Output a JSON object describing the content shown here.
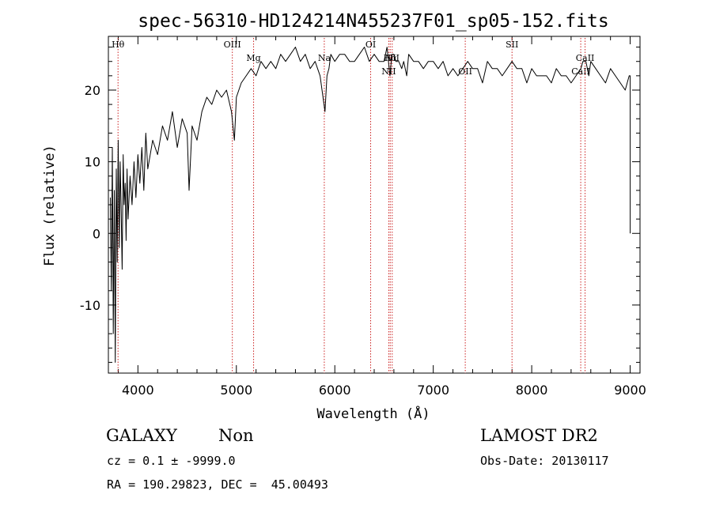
{
  "chart_data": {
    "type": "line",
    "title": "spec-56310-HD124214N455237F01_sp05-152.fits",
    "xlabel": "Wavelength (Å)",
    "ylabel": "Flux (relative)",
    "xlim": [
      3700,
      9100
    ],
    "ylim": [
      -19.5,
      27.5
    ],
    "x_ticks": [
      4000,
      5000,
      6000,
      7000,
      8000,
      9000
    ],
    "y_ticks": [
      -10,
      0,
      10,
      20
    ],
    "grid": false,
    "series": [
      {
        "color": "#000000",
        "x": [
          3720,
          3730,
          3740,
          3750,
          3760,
          3770,
          3780,
          3790,
          3800,
          3810,
          3820,
          3830,
          3840,
          3850,
          3860,
          3870,
          3880,
          3890,
          3900,
          3920,
          3940,
          3960,
          3980,
          4000,
          4020,
          4040,
          4060,
          4080,
          4100,
          4150,
          4200,
          4250,
          4300,
          4350,
          4400,
          4450,
          4500,
          4520,
          4550,
          4600,
          4650,
          4700,
          4750,
          4800,
          4850,
          4900,
          4950,
          4980,
          5000,
          5050,
          5100,
          5150,
          5200,
          5250,
          5300,
          5350,
          5400,
          5450,
          5500,
          5550,
          5600,
          5650,
          5700,
          5750,
          5800,
          5850,
          5880,
          5900,
          5920,
          5940,
          5960,
          6000,
          6050,
          6100,
          6150,
          6200,
          6250,
          6300,
          6350,
          6400,
          6450,
          6500,
          6530,
          6560,
          6580,
          6600,
          6620,
          6650,
          6680,
          6700,
          6730,
          6750,
          6800,
          6850,
          6900,
          6950,
          7000,
          7050,
          7100,
          7150,
          7200,
          7250,
          7300,
          7350,
          7400,
          7450,
          7500,
          7550,
          7600,
          7650,
          7700,
          7750,
          7800,
          7850,
          7900,
          7950,
          8000,
          8050,
          8100,
          8150,
          8200,
          8250,
          8300,
          8350,
          8400,
          8450,
          8500,
          8520,
          8550,
          8580,
          8600,
          8650,
          8700,
          8750,
          8800,
          8850,
          8900,
          8950,
          8990,
          9000,
          9000
        ],
        "y": [
          5,
          -8,
          12,
          -14,
          6,
          -18,
          9,
          -4,
          13,
          -2,
          10,
          3,
          -5,
          11,
          4,
          7,
          -1,
          9,
          2,
          8,
          4,
          10,
          5,
          11,
          7,
          12,
          6,
          14,
          9,
          13,
          11,
          15,
          13,
          17,
          12,
          16,
          14,
          6,
          15,
          13,
          17,
          19,
          18,
          20,
          19,
          20,
          17,
          13,
          19,
          21,
          22,
          23,
          22,
          24,
          23,
          24,
          23,
          25,
          24,
          25,
          26,
          24,
          25,
          23,
          24,
          22,
          19,
          17,
          22,
          23,
          25,
          24,
          25,
          25,
          24,
          24,
          25,
          26,
          24,
          25,
          24,
          24,
          26,
          22,
          25,
          25,
          24,
          24,
          23,
          24,
          22,
          25,
          24,
          24,
          23,
          24,
          24,
          23,
          24,
          22,
          23,
          22,
          23,
          24,
          23,
          23,
          21,
          24,
          23,
          23,
          22,
          23,
          24,
          23,
          23,
          21,
          23,
          22,
          22,
          22,
          21,
          23,
          22,
          22,
          21,
          22,
          23,
          24,
          24,
          22,
          24,
          23,
          22,
          21,
          23,
          22,
          21,
          20,
          22,
          22,
          0
        ]
      }
    ],
    "lines": [
      {
        "label": "Hθ",
        "x": 3798,
        "label_pos": "top"
      },
      {
        "label": "OIII",
        "x": 4959,
        "label_pos": "top"
      },
      {
        "label": "Mg",
        "x": 5175,
        "label_pos": "middle"
      },
      {
        "label": "Na",
        "x": 5893,
        "label_pos": "middle"
      },
      {
        "label": "OI",
        "x": 6364,
        "label_pos": "top"
      },
      {
        "label": "NII",
        "x": 6548,
        "label_pos": "low"
      },
      {
        "label": "Hα",
        "x": 6563,
        "label_pos": "middle"
      },
      {
        "label": "NII",
        "x": 6583,
        "label_pos": "middle"
      },
      {
        "label": "OII",
        "x": 7325,
        "label_pos": "low"
      },
      {
        "label": "SII",
        "x": 7800,
        "label_pos": "top"
      },
      {
        "label": "CaII",
        "x": 8498,
        "label_pos": "low"
      },
      {
        "label": "CaII",
        "x": 8542,
        "label_pos": "middle"
      }
    ]
  },
  "info": {
    "class_label": "GALAXY",
    "subclass_label": "Non",
    "survey_label": "LAMOST DR2",
    "cz_line": "cz = 0.1 ± -9999.0",
    "obs_date_line": "Obs-Date: 20130117",
    "radec_line": "RA = 190.29823, DEC =  45.00493"
  }
}
